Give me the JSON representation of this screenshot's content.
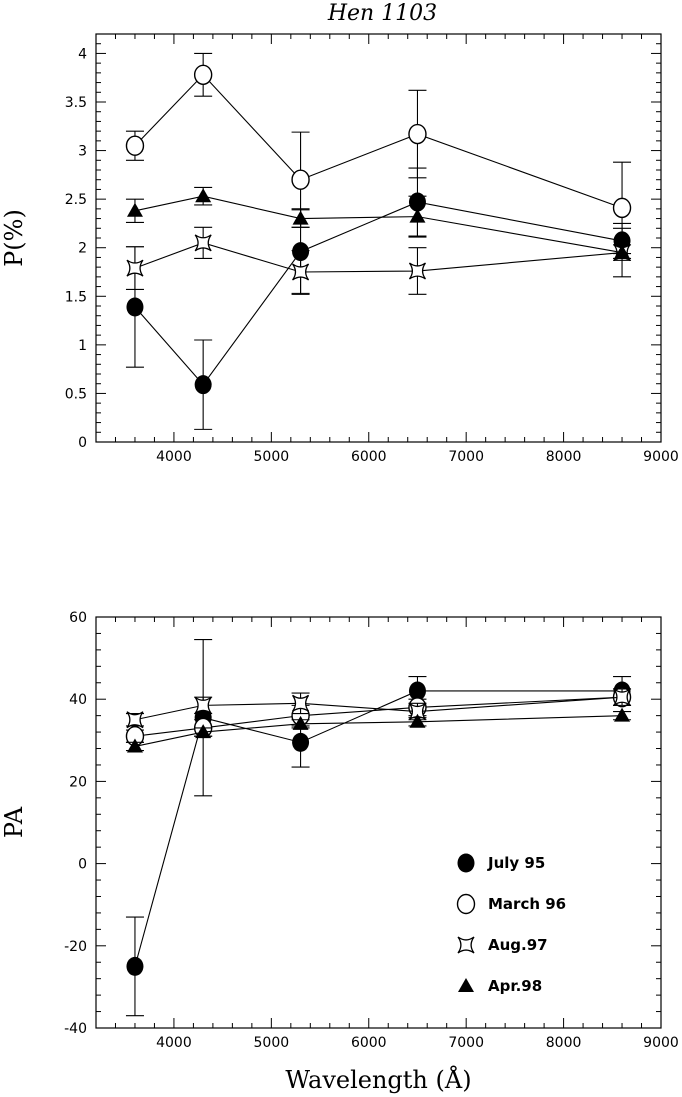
{
  "chart_data": [
    {
      "type": "line",
      "title": "Hen 1103",
      "xlabel": "",
      "ylabel": "P(%)",
      "xlim": [
        3200,
        9000
      ],
      "ylim": [
        0,
        4.2
      ],
      "xticks": [
        4000,
        5000,
        6000,
        7000,
        8000,
        9000
      ],
      "xtick_labels": [
        "4000",
        "5000",
        "6000",
        "7000",
        "8000",
        "9000"
      ],
      "yticks": [
        0,
        0.5,
        1,
        1.5,
        2,
        2.5,
        3,
        3.5,
        4
      ],
      "ytick_labels": [
        "0",
        "0.5",
        "1",
        "1.5",
        "2",
        "2.5",
        "3",
        "3.5",
        "4"
      ],
      "x": [
        3600,
        4300,
        5300,
        6500,
        8600
      ],
      "series": [
        {
          "name": "July 95",
          "marker": "filled-circle",
          "values": [
            1.39,
            0.59,
            1.96,
            2.47,
            2.07
          ],
          "errors": [
            0.62,
            0.46,
            0.44,
            0.35,
            0.18
          ]
        },
        {
          "name": "March 96",
          "marker": "open-circle",
          "values": [
            3.05,
            3.78,
            2.7,
            3.17,
            2.41
          ],
          "errors": [
            0.15,
            0.22,
            0.49,
            0.45,
            0.47
          ]
        },
        {
          "name": "Aug.97",
          "marker": "star",
          "values": [
            1.79,
            2.05,
            1.75,
            1.76,
            1.95
          ],
          "errors": [
            0.22,
            0.16,
            0.22,
            0.24,
            0.25
          ]
        },
        {
          "name": "Apr.98",
          "marker": "filled-triangle",
          "values": [
            2.38,
            2.53,
            2.3,
            2.32,
            1.95
          ],
          "errors": [
            0.12,
            0.09,
            0.09,
            0.21,
            0.08
          ]
        }
      ]
    },
    {
      "type": "line",
      "title": "",
      "xlabel": "Wavelength (Å)",
      "ylabel": "PA",
      "xlim": [
        3200,
        9000
      ],
      "ylim": [
        -40,
        60
      ],
      "xticks": [
        4000,
        5000,
        6000,
        7000,
        8000,
        9000
      ],
      "xtick_labels": [
        "4000",
        "5000",
        "6000",
        "7000",
        "8000",
        "9000"
      ],
      "yticks": [
        -40,
        -20,
        0,
        20,
        40,
        60
      ],
      "ytick_labels": [
        "-40",
        "-20",
        "0",
        "20",
        "40",
        "60"
      ],
      "x": [
        3600,
        4300,
        5300,
        6500,
        8600
      ],
      "legend_position": "bottom-right",
      "series": [
        {
          "name": "July 95",
          "marker": "filled-circle",
          "values": [
            -25,
            35.5,
            29.5,
            42,
            42
          ],
          "errors": [
            12,
            19,
            6,
            3.5,
            3.5
          ]
        },
        {
          "name": "March 96",
          "marker": "open-circle",
          "values": [
            31,
            33,
            36,
            38,
            40.5
          ],
          "errors": [
            1.5,
            2,
            2.5,
            2,
            2
          ]
        },
        {
          "name": "Aug.97",
          "marker": "star",
          "values": [
            35,
            38.5,
            39,
            37,
            40.5
          ],
          "errors": [
            1.5,
            2,
            2.5,
            2,
            2
          ]
        },
        {
          "name": "Apr.98",
          "marker": "filled-triangle",
          "values": [
            28.5,
            32,
            34,
            34.5,
            36
          ],
          "errors": [
            1,
            1,
            1,
            1,
            1
          ]
        }
      ]
    }
  ]
}
